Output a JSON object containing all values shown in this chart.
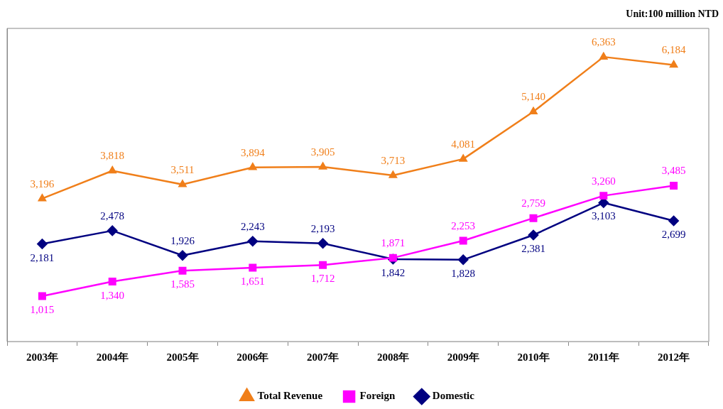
{
  "chart_data": {
    "type": "line",
    "categories": [
      "2003年",
      "2004年",
      "2005年",
      "2006年",
      "2007年",
      "2008年",
      "2009年",
      "2010年",
      "2011年",
      "2012年"
    ],
    "series": [
      {
        "name": "Total Revenue",
        "color": "#f07f1a",
        "values": [
          3196,
          3818,
          3511,
          3894,
          3905,
          3713,
          4081,
          5140,
          6363,
          6184
        ],
        "marker": "triangle",
        "value_labels": [
          "3,196",
          "3,818",
          "3,511",
          "3,894",
          "3,905",
          "3,713",
          "4,081",
          "5,140",
          "6,363",
          "6,184"
        ]
      },
      {
        "name": "Foreign",
        "color": "#ff00ff",
        "values": [
          1015,
          1340,
          1585,
          1651,
          1712,
          1871,
          2253,
          2759,
          3260,
          3485
        ],
        "marker": "square",
        "value_labels": [
          "1,015",
          "1,340",
          "1,585",
          "1,651",
          "1,712",
          "1,871",
          "2,253",
          "2,759",
          "3,260",
          "3,485"
        ]
      },
      {
        "name": "Domestic",
        "color": "#000080",
        "values": [
          2181,
          2478,
          1926,
          2243,
          2193,
          1842,
          1828,
          2381,
          3103,
          2699
        ],
        "marker": "diamond",
        "value_labels": [
          "2,181",
          "2,478",
          "1,926",
          "2,243",
          "2,193",
          "1,842",
          "1,828",
          "2,381",
          "3,103",
          "2,699"
        ]
      }
    ],
    "grid": false,
    "legend": "bottom",
    "tick_labels": "x",
    "annotations": [
      "Unit:100 million NTD"
    ]
  }
}
